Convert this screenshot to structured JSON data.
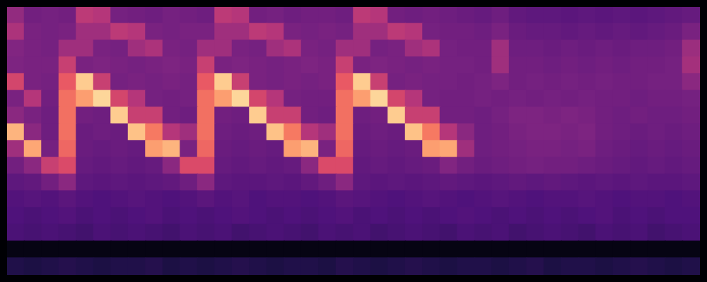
{
  "chart_data": {
    "type": "heatmap",
    "color": "magma",
    "grid": false,
    "tick_labels": false,
    "zlim": [
      0,
      100
    ],
    "cells": [
      [
        42,
        34,
        35,
        34,
        52,
        50,
        35,
        34,
        33,
        35,
        34,
        33,
        52,
        50,
        34,
        35,
        33,
        34,
        34,
        33,
        52,
        50,
        34,
        33,
        34,
        33,
        32,
        31,
        33,
        30,
        29,
        29,
        28,
        29,
        28,
        29,
        28,
        29,
        30,
        31
      ],
      [
        48,
        36,
        35,
        36,
        45,
        45,
        52,
        50,
        36,
        35,
        36,
        36,
        45,
        45,
        52,
        50,
        36,
        35,
        36,
        35,
        45,
        45,
        52,
        50,
        35,
        34,
        34,
        33,
        36,
        32,
        31,
        31,
        30,
        31,
        30,
        31,
        30,
        31,
        32,
        36
      ],
      [
        38,
        36,
        35,
        45,
        45,
        36,
        35,
        45,
        48,
        36,
        35,
        45,
        45,
        36,
        35,
        45,
        48,
        36,
        35,
        45,
        45,
        35,
        36,
        45,
        48,
        35,
        34,
        34,
        45,
        33,
        33,
        32,
        33,
        32,
        33,
        32,
        33,
        33,
        34,
        44
      ],
      [
        37,
        36,
        36,
        55,
        36,
        37,
        36,
        35,
        36,
        37,
        36,
        55,
        36,
        37,
        36,
        35,
        36,
        37,
        36,
        55,
        36,
        37,
        36,
        35,
        36,
        35,
        35,
        34,
        45,
        34,
        34,
        33,
        34,
        33,
        34,
        33,
        34,
        34,
        35,
        46
      ],
      [
        58,
        36,
        35,
        65,
        90,
        55,
        35,
        36,
        35,
        36,
        35,
        65,
        90,
        55,
        36,
        35,
        36,
        35,
        36,
        65,
        90,
        55,
        35,
        36,
        35,
        35,
        34,
        35,
        37,
        34,
        35,
        34,
        35,
        34,
        35,
        34,
        34,
        35,
        35,
        40
      ],
      [
        36,
        50,
        34,
        70,
        80,
        92,
        58,
        50,
        35,
        34,
        35,
        70,
        80,
        92,
        58,
        50,
        35,
        34,
        34,
        70,
        80,
        92,
        58,
        50,
        35,
        34,
        34,
        35,
        34,
        35,
        34,
        35,
        34,
        35,
        34,
        34,
        33,
        34,
        34,
        35
      ],
      [
        40,
        36,
        33,
        70,
        34,
        33,
        90,
        55,
        55,
        34,
        33,
        70,
        34,
        33,
        90,
        55,
        55,
        34,
        33,
        70,
        33,
        34,
        90,
        55,
        55,
        34,
        34,
        33,
        35,
        37,
        37,
        36,
        37,
        36,
        34,
        33,
        34,
        33,
        33,
        34
      ],
      [
        85,
        40,
        33,
        70,
        32,
        33,
        32,
        88,
        72,
        50,
        45,
        70,
        33,
        32,
        33,
        88,
        72,
        50,
        45,
        70,
        32,
        33,
        32,
        88,
        72,
        50,
        40,
        33,
        34,
        36,
        37,
        37,
        36,
        37,
        34,
        33,
        32,
        33,
        32,
        33
      ],
      [
        45,
        82,
        35,
        68,
        32,
        31,
        32,
        31,
        80,
        85,
        36,
        68,
        32,
        31,
        32,
        31,
        80,
        85,
        36,
        68,
        31,
        32,
        31,
        32,
        80,
        82,
        45,
        33,
        34,
        35,
        36,
        36,
        35,
        36,
        33,
        32,
        31,
        32,
        31,
        32
      ],
      [
        34,
        40,
        55,
        60,
        31,
        30,
        31,
        30,
        31,
        40,
        60,
        60,
        31,
        30,
        31,
        30,
        31,
        40,
        60,
        60,
        30,
        31,
        30,
        31,
        32,
        38,
        34,
        32,
        33,
        34,
        35,
        34,
        34,
        33,
        32,
        31,
        30,
        31,
        30,
        31
      ],
      [
        29,
        30,
        34,
        40,
        29,
        28,
        29,
        28,
        29,
        30,
        33,
        40,
        29,
        28,
        28,
        29,
        28,
        30,
        33,
        40,
        29,
        28,
        29,
        28,
        29,
        30,
        29,
        28,
        29,
        30,
        29,
        30,
        29,
        28,
        29,
        28,
        29,
        28,
        28,
        29
      ],
      [
        26,
        27,
        26,
        28,
        26,
        25,
        26,
        27,
        26,
        25,
        26,
        28,
        26,
        27,
        25,
        26,
        26,
        25,
        26,
        28,
        27,
        26,
        25,
        26,
        27,
        26,
        25,
        26,
        27,
        26,
        25,
        26,
        26,
        27,
        26,
        25,
        26,
        26,
        25,
        26
      ],
      [
        25,
        24,
        25,
        26,
        24,
        25,
        24,
        25,
        26,
        24,
        25,
        24,
        25,
        26,
        25,
        24,
        25,
        24,
        25,
        26,
        24,
        25,
        24,
        25,
        24,
        25,
        26,
        25,
        24,
        25,
        24,
        25,
        24,
        25,
        26,
        24,
        25,
        24,
        25,
        25
      ],
      [
        24,
        23,
        24,
        23,
        22,
        24,
        23,
        24,
        23,
        22,
        24,
        23,
        24,
        22,
        23,
        24,
        23,
        22,
        24,
        23,
        24,
        22,
        23,
        24,
        23,
        22,
        24,
        23,
        24,
        22,
        23,
        24,
        23,
        22,
        24,
        23,
        24,
        22,
        23,
        24
      ],
      [
        3,
        3,
        3,
        3,
        3,
        3,
        3,
        3,
        3,
        3,
        3,
        3,
        3,
        3,
        3,
        3,
        3,
        3,
        3,
        3,
        3,
        3,
        3,
        3,
        3,
        3,
        3,
        3,
        3,
        3,
        3,
        3,
        3,
        3,
        3,
        3,
        3,
        3,
        3,
        3
      ],
      [
        14,
        13,
        14,
        15,
        14,
        13,
        14,
        14,
        15,
        13,
        14,
        13,
        14,
        15,
        14,
        13,
        14,
        14,
        13,
        15,
        14,
        13,
        14,
        15,
        14,
        13,
        14,
        14,
        13,
        14,
        15,
        13,
        14,
        14,
        13,
        14,
        15,
        14,
        13,
        14
      ]
    ]
  }
}
